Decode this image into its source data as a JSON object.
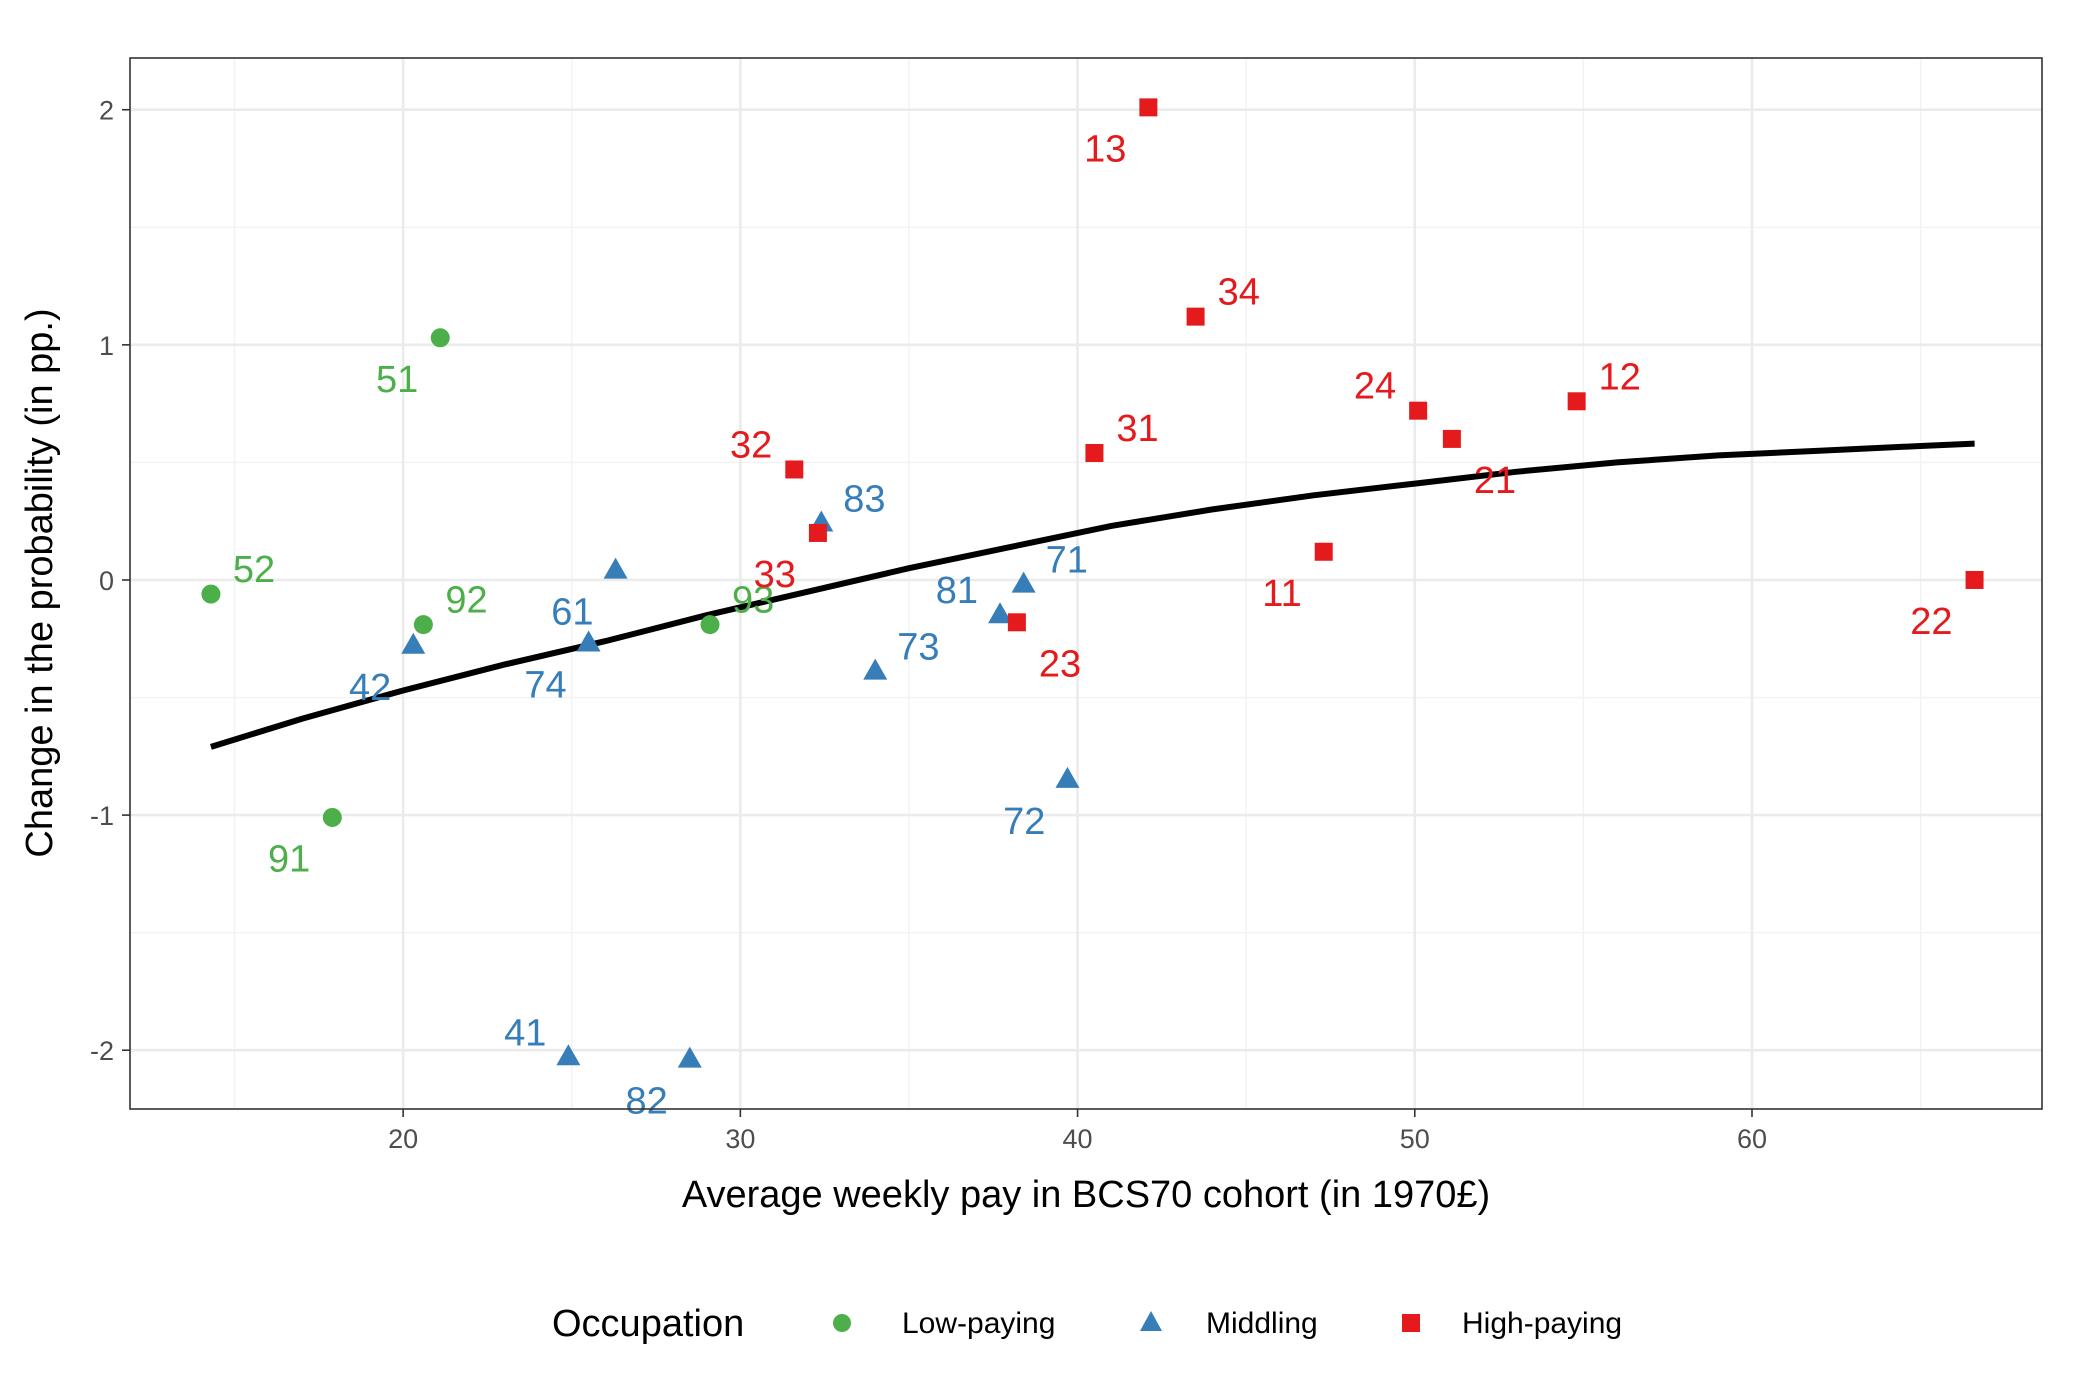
{
  "chart_data": {
    "type": "scatter",
    "xlabel": "Average weekly pay in BCS70 cohort (in 1970£)",
    "ylabel": "Change in the probability (in pp.)",
    "xlim": [
      11.9,
      68.6
    ],
    "ylim": [
      -2.25,
      2.22
    ],
    "xticks": [
      {
        "value": 20,
        "label": "20"
      },
      {
        "value": 30,
        "label": "30"
      },
      {
        "value": 40,
        "label": "40"
      },
      {
        "value": 50,
        "label": "50"
      },
      {
        "value": 60,
        "label": "60"
      }
    ],
    "yticks": [
      {
        "value": -2,
        "label": "-2"
      },
      {
        "value": -1,
        "label": "-1"
      },
      {
        "value": 0,
        "label": "0"
      },
      {
        "value": 1,
        "label": "1"
      },
      {
        "value": 2,
        "label": "2"
      }
    ],
    "grid": true,
    "legend": {
      "title": "Occupation",
      "position": "bottom",
      "entries": [
        {
          "key": "low",
          "label": "Low-paying",
          "shape": "circle",
          "color": "#4DAF4A"
        },
        {
          "key": "mid",
          "label": "Middling",
          "shape": "triangle",
          "color": "#377EB8"
        },
        {
          "key": "high",
          "label": "High-paying",
          "shape": "square",
          "color": "#E41A1C"
        }
      ]
    },
    "points": [
      {
        "label": "52",
        "group": "low",
        "x": 14.3,
        "y": -0.06,
        "lpos": "ne"
      },
      {
        "label": "51",
        "group": "low",
        "x": 21.1,
        "y": 1.03,
        "lpos": "sw"
      },
      {
        "label": "92",
        "group": "low",
        "x": 20.6,
        "y": -0.19,
        "lpos": "ne"
      },
      {
        "label": "93",
        "group": "low",
        "x": 29.1,
        "y": -0.19,
        "lpos": "ne"
      },
      {
        "label": "91",
        "group": "low",
        "x": 17.9,
        "y": -1.01,
        "lpos": "sw"
      },
      {
        "label": "42",
        "group": "mid",
        "x": 20.3,
        "y": -0.28,
        "lpos": "sw"
      },
      {
        "label": "61",
        "group": "mid",
        "x": 26.3,
        "y": 0.04,
        "lpos": "sw"
      },
      {
        "label": "74",
        "group": "mid",
        "x": 25.5,
        "y": -0.27,
        "lpos": "sw"
      },
      {
        "label": "41",
        "group": "mid",
        "x": 24.9,
        "y": -2.03,
        "lpos": "nw"
      },
      {
        "label": "82",
        "group": "mid",
        "x": 28.5,
        "y": -2.04,
        "lpos": "sw"
      },
      {
        "label": "83",
        "group": "mid",
        "x": 32.4,
        "y": 0.24,
        "lpos": "ne"
      },
      {
        "label": "73",
        "group": "mid",
        "x": 34.0,
        "y": -0.39,
        "lpos": "ne"
      },
      {
        "label": "81",
        "group": "mid",
        "x": 37.7,
        "y": -0.15,
        "lpos": "nw"
      },
      {
        "label": "71",
        "group": "mid",
        "x": 38.4,
        "y": -0.02,
        "lpos": "ne"
      },
      {
        "label": "72",
        "group": "mid",
        "x": 39.7,
        "y": -0.85,
        "lpos": "sw"
      },
      {
        "label": "13",
        "group": "high",
        "x": 42.1,
        "y": 2.01,
        "lpos": "sw"
      },
      {
        "label": "34",
        "group": "high",
        "x": 43.5,
        "y": 1.12,
        "lpos": "ne"
      },
      {
        "label": "32",
        "group": "high",
        "x": 31.6,
        "y": 0.47,
        "lpos": "nw"
      },
      {
        "label": "33",
        "group": "high",
        "x": 32.3,
        "y": 0.2,
        "lpos": "sw"
      },
      {
        "label": "31",
        "group": "high",
        "x": 40.5,
        "y": 0.54,
        "lpos": "ne"
      },
      {
        "label": "23",
        "group": "high",
        "x": 38.2,
        "y": -0.18,
        "lpos": "se"
      },
      {
        "label": "24",
        "group": "high",
        "x": 50.1,
        "y": 0.72,
        "lpos": "nw"
      },
      {
        "label": "21",
        "group": "high",
        "x": 51.1,
        "y": 0.6,
        "lpos": "se"
      },
      {
        "label": "12",
        "group": "high",
        "x": 54.8,
        "y": 0.76,
        "lpos": "ne"
      },
      {
        "label": "11",
        "group": "high",
        "x": 47.3,
        "y": 0.12,
        "lpos": "sw"
      },
      {
        "label": "22",
        "group": "high",
        "x": 66.6,
        "y": 0.0,
        "lpos": "sw"
      }
    ],
    "fit_line": {
      "color": "#000000",
      "points": [
        [
          14.3,
          -0.71
        ],
        [
          17,
          -0.59
        ],
        [
          20,
          -0.47
        ],
        [
          23,
          -0.36
        ],
        [
          26,
          -0.26
        ],
        [
          29,
          -0.15
        ],
        [
          32,
          -0.05
        ],
        [
          35,
          0.05
        ],
        [
          38,
          0.14
        ],
        [
          41,
          0.23
        ],
        [
          44,
          0.3
        ],
        [
          47,
          0.36
        ],
        [
          50,
          0.41
        ],
        [
          53,
          0.46
        ],
        [
          56,
          0.5
        ],
        [
          59,
          0.53
        ],
        [
          62,
          0.55
        ],
        [
          65,
          0.57
        ],
        [
          66.6,
          0.58
        ]
      ]
    }
  }
}
